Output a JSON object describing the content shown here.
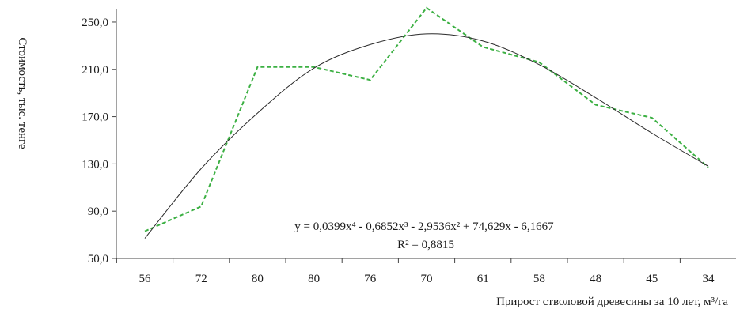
{
  "chart_data": {
    "type": "line",
    "title": "",
    "xlabel": "Прирост стволовой древесины за 10 лет, м³/га",
    "ylabel": "Стоимость, тыс. тенге",
    "categories": [
      "56",
      "72",
      "80",
      "80",
      "76",
      "70",
      "61",
      "58",
      "48",
      "45",
      "34"
    ],
    "y_ticks": [
      "50,0",
      "90,0",
      "130,0",
      "170,0",
      "210,0",
      "250,0"
    ],
    "ylim": [
      50,
      260
    ],
    "grid": false,
    "legend": "none",
    "series": [
      {
        "style": "dashed",
        "color": "#3cb043",
        "values": [
          73,
          94,
          212,
          212,
          201,
          262,
          229,
          216,
          180,
          169,
          127
        ]
      },
      {
        "style": "solid",
        "color": "#2a2a2a",
        "trendline": "polynomial",
        "values": [
          67,
          126,
          173,
          211,
          231,
          240,
          234,
          214,
          186,
          156,
          128
        ]
      }
    ],
    "annotations": {
      "equation": "y = 0,0399x⁴ - 0,6852x³ - 2,9536x² + 74,629x - 6,1667",
      "r_squared": "R² = 0,8815"
    }
  }
}
